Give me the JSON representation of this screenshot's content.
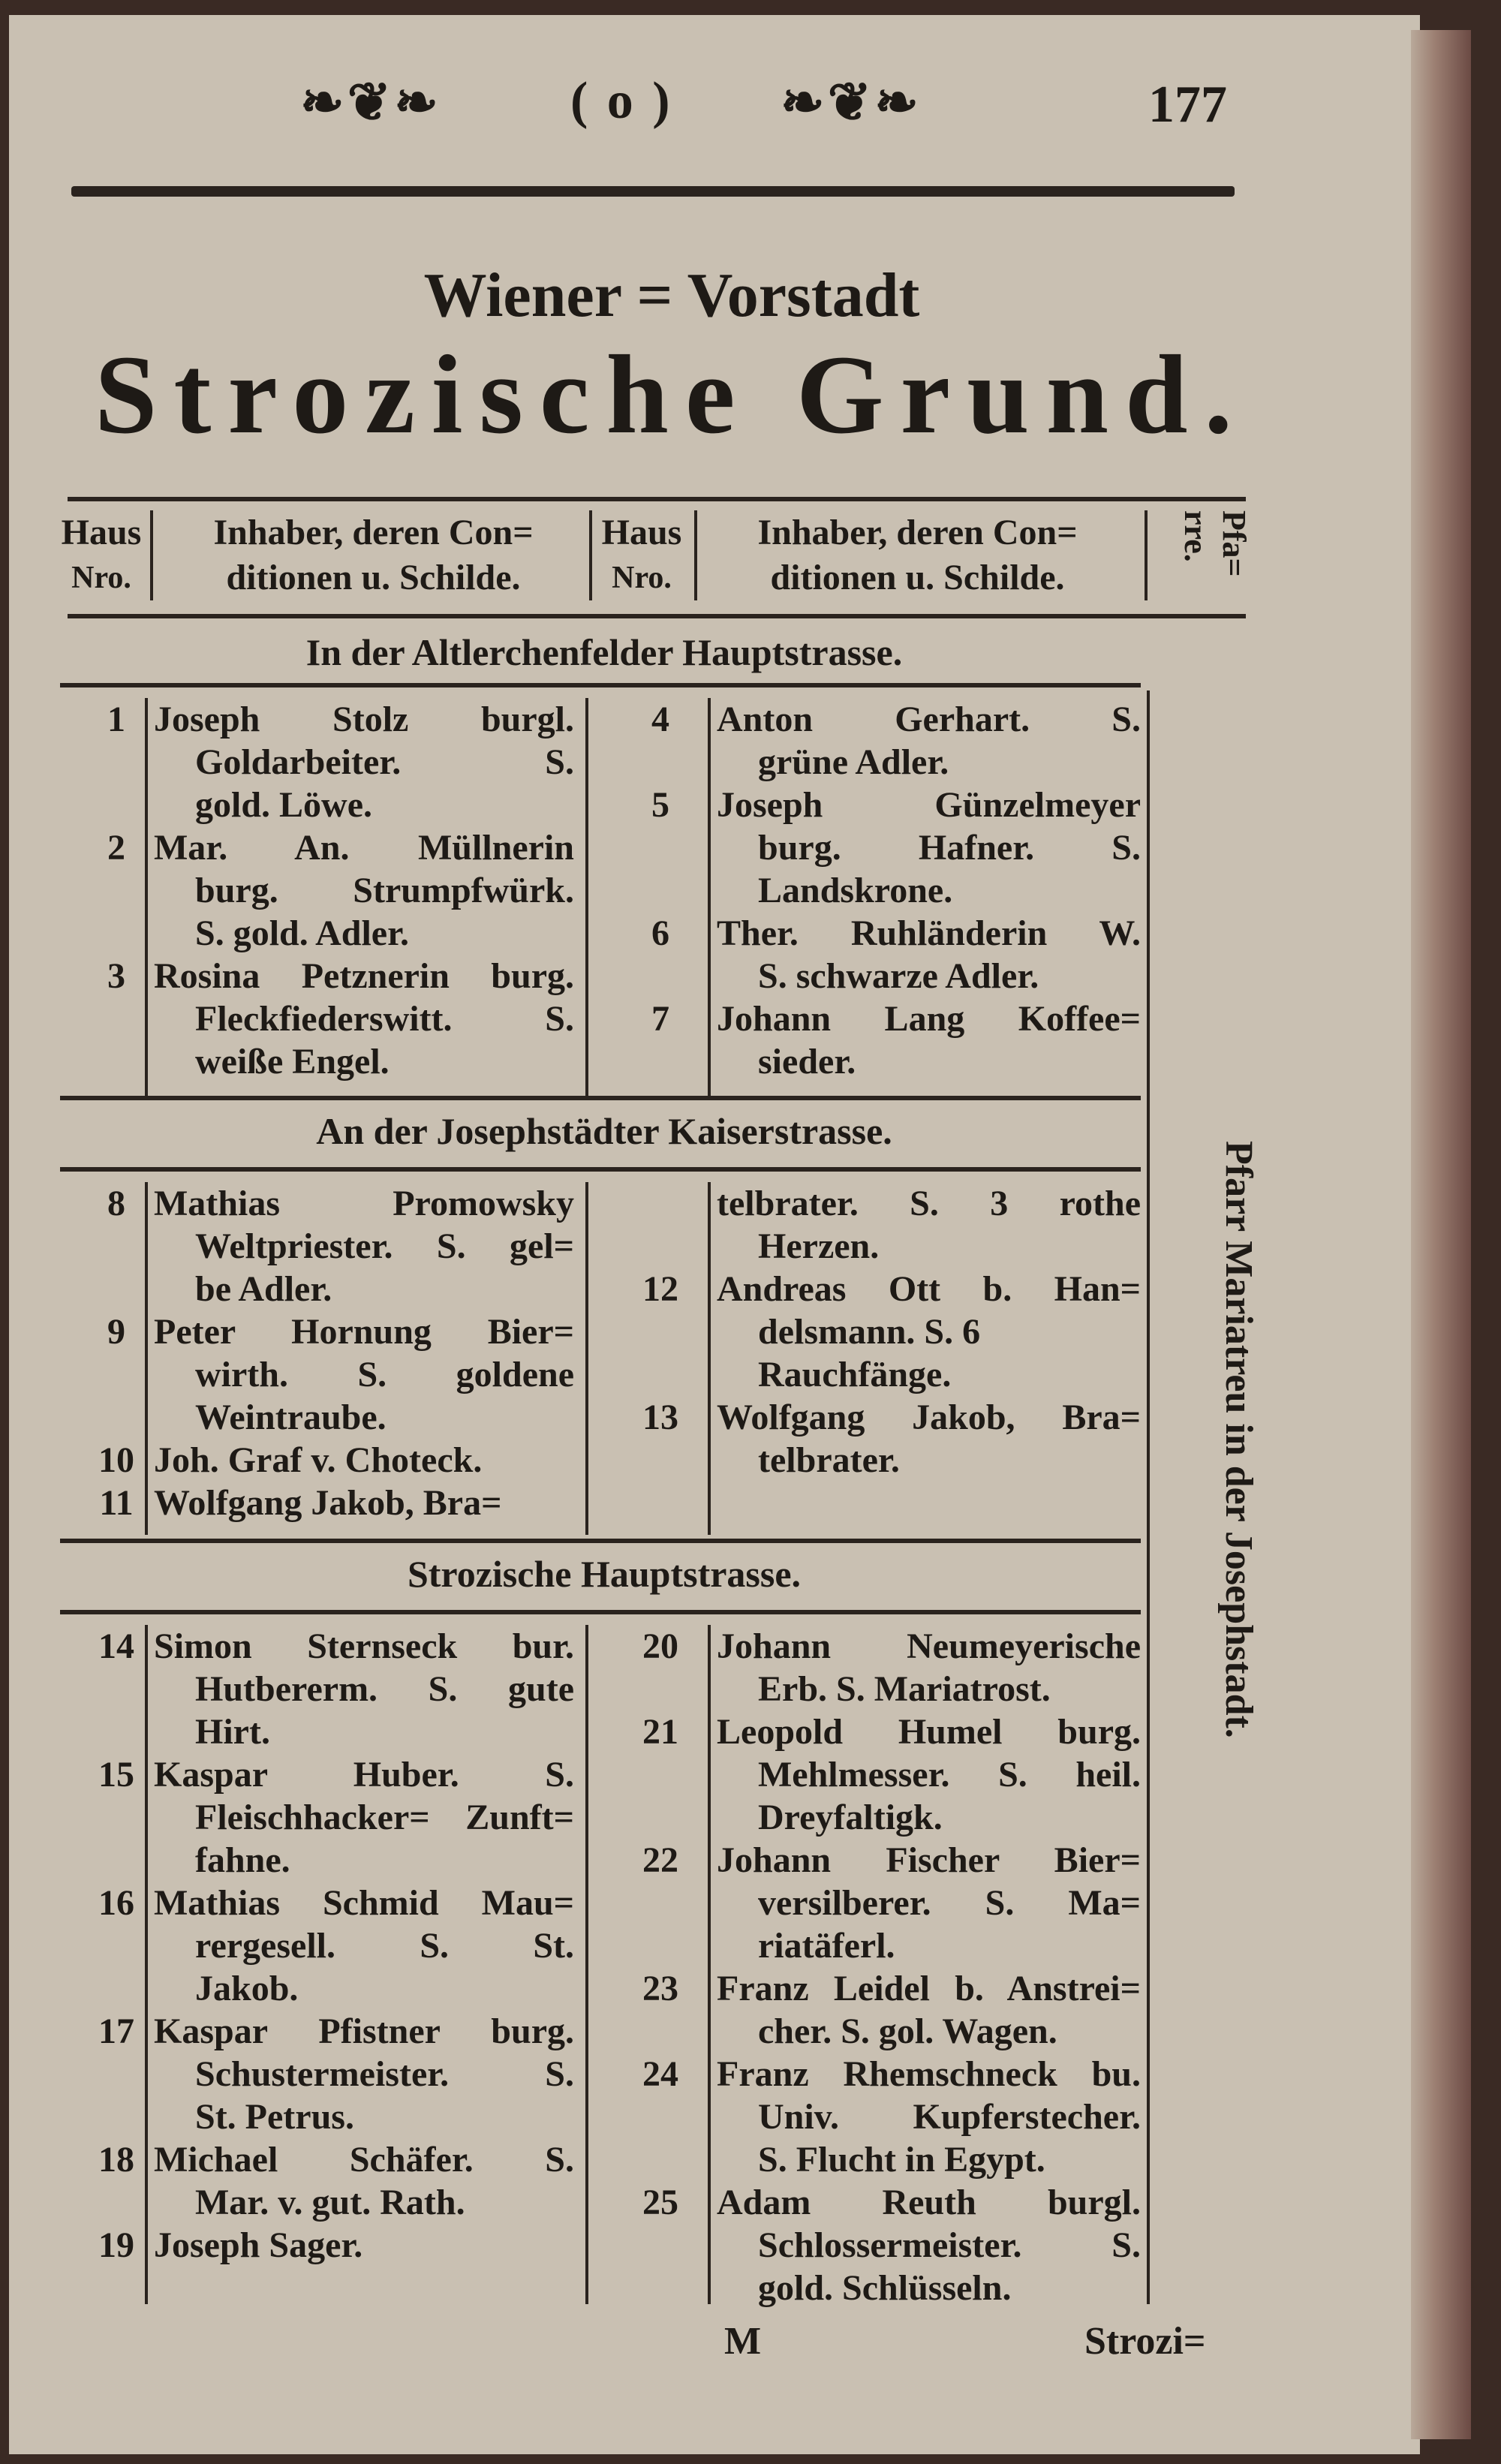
{
  "page": {
    "header_ornament_left": "❧❦❧",
    "header_center": "( o )",
    "header_ornament_right": "❧❦❧",
    "page_number": "177"
  },
  "title": {
    "line1": "Wiener = Vorstadt",
    "line2": "Strozische Grund."
  },
  "table_header": {
    "haus_nro": [
      "Haus",
      "Nro."
    ],
    "inhaber": [
      "Inhaber, deren Con=",
      "ditionen u. Schilde."
    ],
    "pfarre": "Pfa= rre."
  },
  "sections": [
    {
      "heading": "In der Altlerchenfelder Hauptstrasse.",
      "left": [
        {
          "nr": "1",
          "lines": [
            "Joseph Stolz burgl.",
            "Goldarbeiter. S.",
            "gold. Löwe."
          ]
        },
        {
          "nr": "2",
          "lines": [
            "Mar. An. Müllnerin",
            "burg. Strumpfwürk.",
            "S. gold. Adler."
          ]
        },
        {
          "nr": "3",
          "lines": [
            "Rosina Petznerin burg.",
            "Fleckfiederswitt. S.",
            "weiße Engel."
          ]
        }
      ],
      "right": [
        {
          "nr": "4",
          "lines": [
            "Anton Gerhart. S.",
            "grüne Adler."
          ]
        },
        {
          "nr": "5",
          "lines": [
            "Joseph Günzelmeyer",
            "burg. Hafner. S.",
            "Landskrone."
          ]
        },
        {
          "nr": "6",
          "lines": [
            "Ther. Ruhländerin W.",
            "S. schwarze Adler."
          ]
        },
        {
          "nr": "7",
          "lines": [
            "Johann Lang Koffee=",
            "sieder."
          ]
        }
      ]
    },
    {
      "heading": "An der Josephstädter Kaiserstrasse.",
      "left": [
        {
          "nr": "8",
          "lines": [
            "Mathias Promowsky",
            "Weltpriester. S. gel=",
            "be Adler."
          ]
        },
        {
          "nr": "9",
          "lines": [
            "Peter Hornung Bier=",
            "wirth. S. goldene",
            "Weintraube."
          ]
        },
        {
          "nr": "10",
          "lines": [
            "Joh. Graf v. Choteck."
          ]
        },
        {
          "nr": "11",
          "lines": [
            "Wolfgang Jakob, Bra="
          ]
        }
      ],
      "right": [
        {
          "nr": "",
          "lines": [
            "telbrater. S. 3 rothe",
            "Herzen."
          ]
        },
        {
          "nr": "12",
          "lines": [
            "Andreas Ott b. Han=",
            "delsmann. S. 6",
            "Rauchfänge."
          ]
        },
        {
          "nr": "13",
          "lines": [
            "Wolfgang Jakob, Bra=",
            "telbrater."
          ]
        }
      ]
    },
    {
      "heading": "Strozische Hauptstrasse.",
      "left": [
        {
          "nr": "14",
          "lines": [
            "Simon Sternseck bur.",
            "Hutbererm. S. gute",
            "Hirt."
          ]
        },
        {
          "nr": "15",
          "lines": [
            "Kaspar Huber. S.",
            "Fleischhacker= Zunft=",
            "fahne."
          ]
        },
        {
          "nr": "16",
          "lines": [
            "Mathias Schmid Mau=",
            "rergesell. S. St.",
            "Jakob."
          ]
        },
        {
          "nr": "17",
          "lines": [
            "Kaspar Pfistner burg.",
            "Schustermeister. S.",
            "St. Petrus."
          ]
        },
        {
          "nr": "18",
          "lines": [
            "Michael Schäfer. S.",
            "Mar. v. gut. Rath."
          ]
        },
        {
          "nr": "19",
          "lines": [
            "Joseph Sager."
          ]
        }
      ],
      "right": [
        {
          "nr": "20",
          "lines": [
            "Johann Neumeyerische",
            "Erb. S. Mariatrost."
          ]
        },
        {
          "nr": "21",
          "lines": [
            "Leopold Humel burg.",
            "Mehlmesser. S. heil.",
            "Dreyfaltigk."
          ]
        },
        {
          "nr": "22",
          "lines": [
            "Johann Fischer Bier=",
            "versilberer. S. Ma=",
            "riatäferl."
          ]
        },
        {
          "nr": "23",
          "lines": [
            "Franz Leidel b. Anstrei=",
            "cher. S. gol. Wagen."
          ]
        },
        {
          "nr": "24",
          "lines": [
            "Franz Rhemschneck bu.",
            "Univ. Kupferstecher.",
            "S. Flucht in Egypt."
          ]
        },
        {
          "nr": "25",
          "lines": [
            "Adam Reuth burgl.",
            "Schlossermeister. S.",
            "gold. Schlüsseln."
          ]
        }
      ]
    }
  ],
  "side_note": "Pfarr Mariatreu in der Josephstadt.",
  "footer": {
    "signature": "M",
    "catchword": "Strozi="
  }
}
